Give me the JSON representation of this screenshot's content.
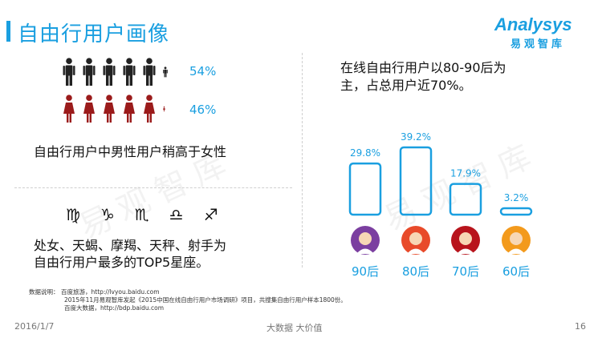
{
  "header": {
    "title": "自由行用户画像"
  },
  "logo": {
    "main": "Analysys",
    "sub": "易观智库"
  },
  "watermark": {
    "text": "易观智库"
  },
  "gender": {
    "male_percent": "54%",
    "female_percent": "46%",
    "male_share": 0.54,
    "female_share": 0.46,
    "male_color": "#222222",
    "female_color": "#9b1b1b",
    "caption": "自由行用户中男性用户稍高于女性"
  },
  "zodiac": {
    "symbols": "♍ ♑ ♏ ♎ ♐",
    "line1": "处女、天蝎、摩羯、天秤、射手为",
    "line2": "自由行用户最多的TOP5星座。"
  },
  "age": {
    "line1": "在线自由行用户以80-90后为",
    "line2": "主，占总用户近70%。"
  },
  "chart_data": {
    "type": "bar",
    "categories": [
      "90后",
      "80后",
      "70后",
      "60后"
    ],
    "values": [
      29.8,
      39.2,
      17.9,
      3.2
    ],
    "value_labels": [
      "29.8%",
      "39.2%",
      "17.9%",
      "3.2%"
    ],
    "unit": "%",
    "ylim": [
      0,
      39.2
    ],
    "grid": false,
    "bar_style": "outlined",
    "bar_color": "#1a9fe0",
    "avatar_colors": [
      "#7b3fa0",
      "#e84a2a",
      "#b8141c",
      "#f39a1c"
    ]
  },
  "notes": {
    "label": "数据说明：",
    "line1": "百度旅游，http://lvyou.baidu.com",
    "line2": "2015年11月易观智库发起《2015中国在线自由行用户市场调研》项目，共搜集自由行用户样本1800份。",
    "line3": "百度大数据，http://bdp.baidu.com"
  },
  "footer": {
    "date": "2016/1/7",
    "slogan": "大数据    大价值",
    "page": "16"
  }
}
